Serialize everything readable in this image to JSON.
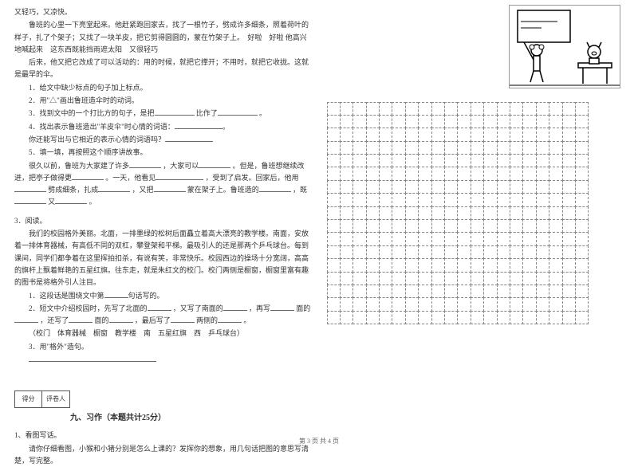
{
  "left": {
    "p1": "又轻巧，又凉快。",
    "p2": "鲁班的心里一下亮堂起来。他赶紧跑回家去，找了一根竹子，劈成许多细条，照着荷叶的样子，扎了个架子；又找了一块羊皮，把它剪得圆圆的，蒙在竹架子上。　好啦　好啦 他高兴地喊起来　这东西既能挡雨遮太阳　又很轻巧",
    "p3": "后来，他又把它改成了可以活动的：用的时候，就把它撑开；不用时，就把它收拢。这就是最早的伞。",
    "q1": "1．给文中缺少标点的句子加上标点。",
    "q2": "2．用\"△\"画出鲁班造伞时的动词。",
    "q3a": "3．找到文中的一个打比方的句子，是把",
    "q3b": "比作了",
    "q3c": "。",
    "q4a": "4．找出表示鲁班造出\"羊皮伞\"时心情的词语：",
    "q4b": "。",
    "q4c": "你还能写出与它相近的表示心情的词语吗？",
    "q5": "5．填一填，再按照这个顺序讲故事。",
    "q5a": "很久以前，鲁班为大家建了许多",
    "q5b": "，大家可以",
    "q5c": "。但是，鲁班想继续改进，把亭子做得更",
    "q5d": "。一天，他看见",
    "q5e": "，受到了启发。回家后，他用",
    "q5f": "劈成细条，扎成",
    "q5g": "，又把",
    "q5h": "蒙在架子上。鲁班造的",
    "q5i": "，既",
    "q5j": "又",
    "q5k": "。",
    "sec3": "3．阅读。",
    "p4": "我们的校园格外美丽。北面，一排墨绿的松树后面矗立着高大漂亮的教学楼。南面，安放着一排体育器械，有高低不同的双杠，攀登架和平梯。最吸引人的还是那两个乒乓球台。每到课间，同学们都争着在这里挥拍扣杀，有说有笑，非常快乐。校园西边的操场十分宽阔，高高的旗杆上飘着鲜艳的五星红旗。往东走，就是朱红文的校门。校门两侧是橱窗，橱窗里富有趣的图书是将格外引人注目。",
    "r1a": "1．这段话是围绕文中第",
    "r1b": "句话写的。",
    "r2a": "2．短文中介绍校园时，先写了北面的",
    "r2b": "，又写了南面的",
    "r2c": "，再写",
    "r2d": "面的",
    "r2e": "，还写了",
    "r2f": "面的",
    "r2g": "，最后写了",
    "r2h": "两侧的",
    "r2i": "。",
    "choices": "（校门　体育器械　橱窗　教学楼　南　五星红旗　西　乒乓球台）",
    "r3": "3．用\"格外\"造句。",
    "r3line": "",
    "score1": "得分",
    "score2": "评卷人",
    "title9": "九、习作（本题共计25分）",
    "w1": "1、看图写话。",
    "w2": "请你仔细看图，小猴和小猪分别是怎么上课的？发挥你的想象，用几句话把图的意思写清楚，写完整。",
    "footer": "第 3 页 共 4 页"
  },
  "grid": {
    "rows": 17,
    "cols": 20
  }
}
